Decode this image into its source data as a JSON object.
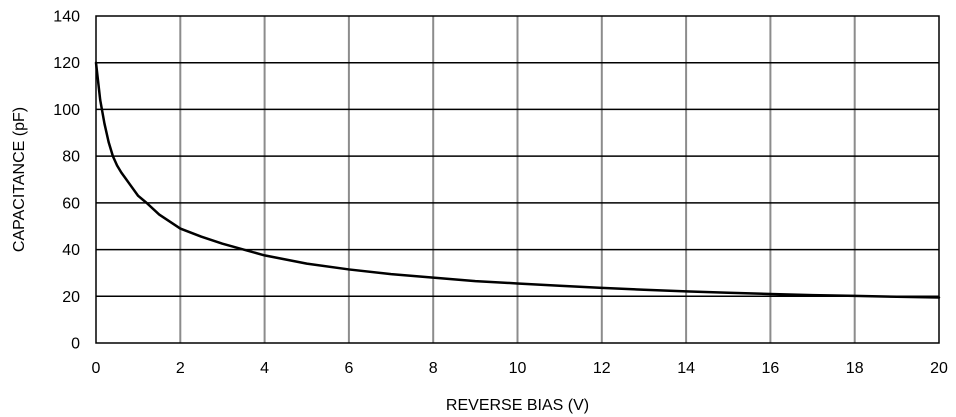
{
  "chart_data": {
    "type": "line",
    "title": "",
    "xlabel": "REVERSE BIAS (V)",
    "ylabel": "CAPACITANCE (pF)",
    "xlim": [
      0,
      20
    ],
    "ylim": [
      0,
      140
    ],
    "xticks": [
      0,
      2,
      4,
      6,
      8,
      10,
      12,
      14,
      16,
      18,
      20
    ],
    "yticks": [
      0,
      20,
      40,
      60,
      80,
      100,
      120,
      140
    ],
    "grid": true,
    "colors": {
      "line": "#000000",
      "vgrid": "#8c8c8c",
      "hgrid": "#000000"
    },
    "series": [
      {
        "x": [
          0,
          0.1,
          0.2,
          0.3,
          0.4,
          0.5,
          0.6,
          0.8,
          1.0,
          1.2,
          1.5,
          2,
          2.5,
          3,
          3.5,
          4,
          5,
          6,
          7,
          8,
          9,
          10,
          11,
          12,
          13,
          14,
          15,
          16,
          17,
          18,
          19,
          20
        ],
        "y": [
          120,
          104,
          94,
          86,
          80,
          76,
          73,
          68,
          63,
          60,
          55,
          49,
          45.5,
          42.5,
          40,
          37.5,
          34,
          31.5,
          29.5,
          28,
          26.5,
          25.5,
          24.5,
          23.6,
          22.8,
          22.1,
          21.5,
          21,
          20.5,
          20.2,
          19.8,
          19.5
        ]
      }
    ]
  }
}
